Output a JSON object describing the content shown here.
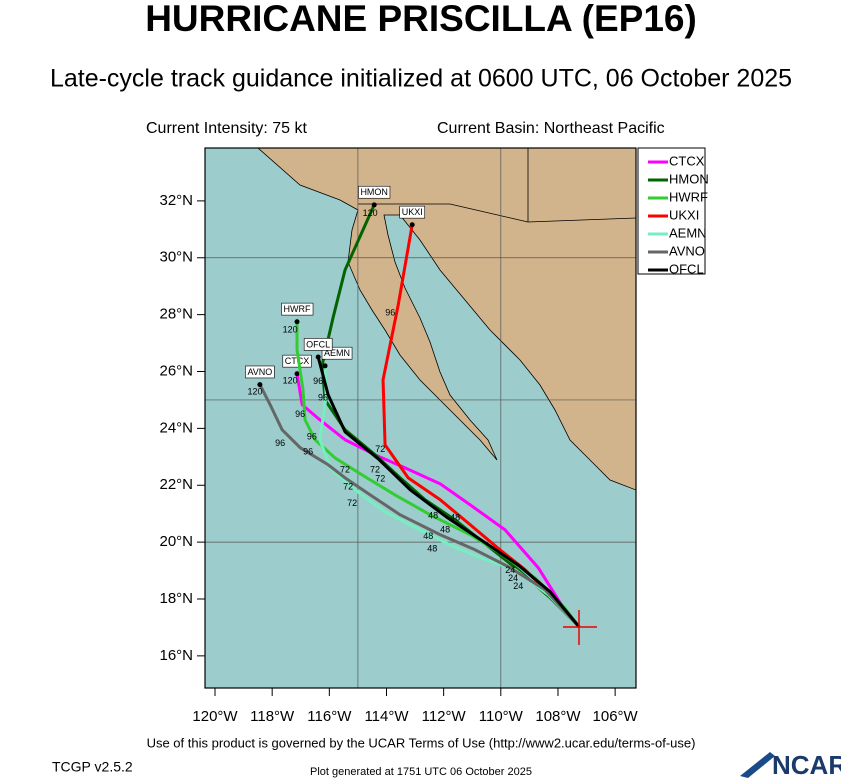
{
  "chart_data": {
    "type": "track",
    "title": "HURRICANE PRISCILLA (EP16)",
    "subtitle": "Late-cycle track guidance initialized at 0600 UTC, 06 October 2025",
    "intensity": "Current Intensity: 75 kt",
    "basin": "Current Basin: Northeast Pacific",
    "xlim": [
      -120.35,
      -105.27
    ],
    "ylim": [
      14.87,
      33.86
    ],
    "xticks": [
      {
        "value": -120,
        "label": "120°W"
      },
      {
        "value": -118,
        "label": "118°W"
      },
      {
        "value": -116,
        "label": "116°W"
      },
      {
        "value": -114,
        "label": "114°W"
      },
      {
        "value": -112,
        "label": "112°W"
      },
      {
        "value": -110,
        "label": "110°W"
      },
      {
        "value": -108,
        "label": "108°W"
      },
      {
        "value": -106,
        "label": "106°W"
      }
    ],
    "yticks": [
      {
        "value": 16,
        "label": "16°N"
      },
      {
        "value": 18,
        "label": "18°N"
      },
      {
        "value": 20,
        "label": "20°N"
      },
      {
        "value": 22,
        "label": "22°N"
      },
      {
        "value": 24,
        "label": "24°N"
      },
      {
        "value": 26,
        "label": "26°N"
      },
      {
        "value": 28,
        "label": "28°N"
      },
      {
        "value": 30,
        "label": "30°N"
      },
      {
        "value": 32,
        "label": "32°N"
      }
    ],
    "grid_x": [
      -115,
      -110
    ],
    "grid_y": [
      20,
      25,
      30
    ],
    "legend": "upper right",
    "series": [
      {
        "name": "CTCX",
        "color": "#ff00ff",
        "x": [
          -107.26,
          -107.92,
          -108.69,
          -109.85,
          -111.07,
          -112.12,
          -113.35,
          -114.4,
          -115.45,
          -116.33,
          -116.95,
          -117.13
        ],
        "values": [
          17.02,
          17.86,
          19.1,
          20.43,
          21.31,
          22.05,
          22.61,
          23.07,
          23.6,
          24.3,
          24.83,
          25.92
        ]
      },
      {
        "name": "HMON",
        "color": "#006400",
        "x": [
          -107.26,
          -108.27,
          -109.32,
          -110.37,
          -111.6,
          -112.65,
          -113.52,
          -114.4,
          -115.45,
          -116.15,
          -116.25,
          -115.87,
          -115.45,
          -114.43
        ],
        "values": [
          17.02,
          18.04,
          18.96,
          19.8,
          20.78,
          21.49,
          22.26,
          23.07,
          23.95,
          25.0,
          26.23,
          27.89,
          29.57,
          31.86
        ]
      },
      {
        "name": "HWRF",
        "color": "#33cc33",
        "x": [
          -107.26,
          -107.77,
          -108.8,
          -110.03,
          -111.07,
          -112.47,
          -113.7,
          -114.75,
          -115.8,
          -116.5,
          -116.85,
          -116.92,
          -117.13,
          -117.13
        ],
        "values": [
          17.02,
          17.69,
          18.74,
          19.62,
          20.26,
          20.96,
          21.66,
          22.3,
          22.96,
          23.6,
          24.3,
          25.35,
          26.76,
          27.75
        ]
      },
      {
        "name": "UKXI",
        "color": "#ff0000",
        "x": [
          -107.26,
          -108.1,
          -109.15,
          -110.03,
          -111.07,
          -112.12,
          -113.24,
          -114.05,
          -114.12,
          -113.59,
          -113.1
        ],
        "values": [
          17.02,
          17.97,
          19.03,
          19.73,
          20.61,
          21.49,
          22.26,
          23.42,
          25.71,
          28.34,
          31.16
        ]
      },
      {
        "name": "AEMN",
        "color": "#77eec0",
        "x": [
          -107.26,
          -108.34,
          -109.5,
          -110.72,
          -111.77,
          -112.82,
          -114.05,
          -115.1,
          -115.97,
          -116.33,
          -116.11,
          -116.15
        ],
        "values": [
          17.02,
          18.15,
          19.03,
          19.45,
          19.9,
          20.43,
          21.06,
          21.84,
          22.61,
          23.6,
          25.14,
          26.2
        ]
      },
      {
        "name": "AVNO",
        "color": "#666666",
        "x": [
          -107.26,
          -108.45,
          -109.67,
          -110.9,
          -112.12,
          -113.52,
          -114.57,
          -115.45,
          -116.04,
          -117.02,
          -117.65,
          -118.07,
          -118.43
        ],
        "values": [
          17.02,
          18.32,
          19.1,
          19.73,
          20.26,
          20.96,
          21.66,
          22.26,
          22.72,
          23.32,
          23.95,
          24.83,
          25.54
        ]
      },
      {
        "name": "OFCL",
        "color": "#000000",
        "x": [
          -107.26,
          -108.27,
          -109.36,
          -110.65,
          -111.91,
          -113.17,
          -114.29,
          -115.45,
          -116.04,
          -116.39
        ],
        "values": [
          17.02,
          18.25,
          19.17,
          20.05,
          20.89,
          21.84,
          22.93,
          23.88,
          25.18,
          26.51
        ]
      }
    ],
    "hour_labels": [
      {
        "x": -117.37,
        "y": 27.46,
        "label": "120"
      },
      {
        "x": -117.37,
        "y": 25.67,
        "label": "120"
      },
      {
        "x": -118.6,
        "y": 25.28,
        "label": "120"
      },
      {
        "x": -114.57,
        "y": 31.56,
        "label": "120"
      },
      {
        "x": -113.87,
        "y": 28.06,
        "label": "96"
      },
      {
        "x": -116.39,
        "y": 25.64,
        "label": "96"
      },
      {
        "x": -117.02,
        "y": 24.48,
        "label": "96"
      },
      {
        "x": -116.61,
        "y": 23.7,
        "label": "96"
      },
      {
        "x": -117.72,
        "y": 23.46,
        "label": "96"
      },
      {
        "x": -116.74,
        "y": 23.17,
        "label": "96"
      },
      {
        "x": -116.22,
        "y": 25.07,
        "label": "96"
      },
      {
        "x": -114.22,
        "y": 23.25,
        "label": "72"
      },
      {
        "x": -115.45,
        "y": 22.54,
        "label": "72"
      },
      {
        "x": -114.4,
        "y": 22.54,
        "label": "72"
      },
      {
        "x": -115.34,
        "y": 21.94,
        "label": "72"
      },
      {
        "x": -114.22,
        "y": 22.22,
        "label": "72"
      },
      {
        "x": -115.2,
        "y": 21.35,
        "label": "72"
      },
      {
        "x": -112.37,
        "y": 20.92,
        "label": "48"
      },
      {
        "x": -111.6,
        "y": 20.85,
        "label": "48"
      },
      {
        "x": -111.95,
        "y": 20.43,
        "label": "48"
      },
      {
        "x": -112.54,
        "y": 20.19,
        "label": "48"
      },
      {
        "x": -112.4,
        "y": 19.76,
        "label": "48"
      },
      {
        "x": -109.67,
        "y": 18.99,
        "label": "24"
      },
      {
        "x": -109.57,
        "y": 18.71,
        "label": "24"
      },
      {
        "x": -109.39,
        "y": 18.43,
        "label": "24"
      }
    ],
    "terms": "Use of this product is governed by the UCAR Terms of Use (http://www2.ucar.edu/terms-of-use)",
    "version": "TCGP v2.5.2",
    "generated": "Plot generated at 1751 UTC   06 October 2025",
    "logo": "NCAR"
  }
}
